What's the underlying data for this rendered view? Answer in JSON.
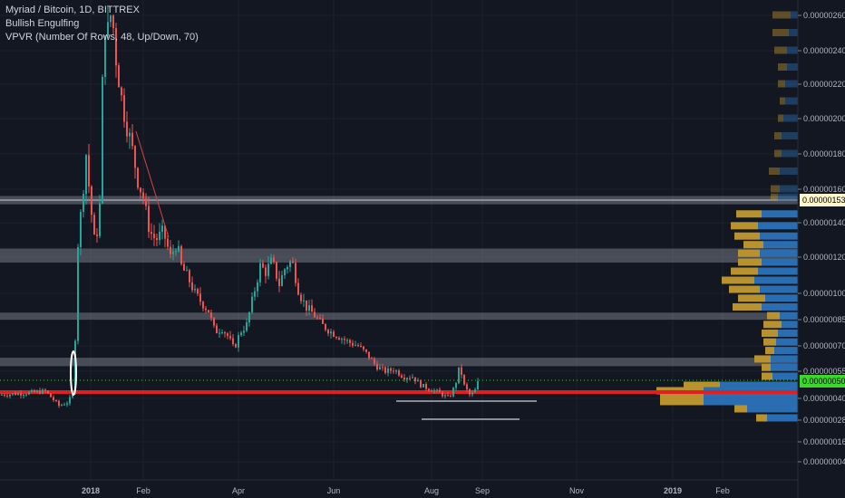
{
  "legend": {
    "title": "Myriad / Bitcoin, 1D, BITTREX",
    "indicator1": "Bullish Engulfing",
    "indicator2": "VPVR (Number Of Rows, 48, Up/Down, 70)"
  },
  "colors": {
    "background": "#131722",
    "up_candle": "#26a69a",
    "down_candle": "#ef5350",
    "vp_up": "#2a6db0",
    "vp_down": "#b8922e",
    "support_line": "#e02020",
    "zone": "#8a8e99",
    "current_price_bg": "#3dd62a",
    "high_price_bg": "#fff6cc"
  },
  "price_tags": {
    "current": "0.00000050",
    "high_zone": "0.00000153"
  },
  "chart_data": {
    "type": "candlestick",
    "title": "Myriad / Bitcoin, 1D, BITTREX",
    "x_tick_labels": [
      "2018",
      "Feb",
      "Apr",
      "Jun",
      "Aug",
      "Sep",
      "Nov",
      "2019",
      "Feb"
    ],
    "y_tick_labels": [
      "0.00000260",
      "0.00000240",
      "0.00000220",
      "0.00000200",
      "0.00000180",
      "0.00000160",
      "0.00000140",
      "0.00000120",
      "0.00000100",
      "0.00000085",
      "0.00000070",
      "0.00000055",
      "0.00000040",
      "0.00000028",
      "0.00000016",
      "0.00000004"
    ],
    "ylim": [
      4e-08,
      2.6e-06
    ],
    "close_path": [
      [
        0,
        4.2e-07
      ],
      [
        30,
        4.3e-07
      ],
      [
        50,
        4.4e-07
      ],
      [
        65,
        3.6e-07
      ],
      [
        75,
        3.8e-07
      ],
      [
        80,
        4.2e-07
      ],
      [
        83,
        7.5e-07
      ],
      [
        86,
        1.28e-06
      ],
      [
        90,
        1.5e-06
      ],
      [
        95,
        1.8e-06
      ],
      [
        100,
        1.5e-06
      ],
      [
        105,
        1.25e-06
      ],
      [
        110,
        1.5e-06
      ],
      [
        113,
        2.2e-06
      ],
      [
        116,
        2.55e-06
      ],
      [
        120,
        2.5e-06
      ],
      [
        123,
        2.65e-06
      ],
      [
        128,
        2.35e-06
      ],
      [
        133,
        2.15e-06
      ],
      [
        138,
        2e-06
      ],
      [
        145,
        1.85e-06
      ],
      [
        152,
        1.65e-06
      ],
      [
        158,
        1.55e-06
      ],
      [
        165,
        1.35e-06
      ],
      [
        172,
        1.3e-06
      ],
      [
        180,
        1.35e-06
      ],
      [
        188,
        1.2e-06
      ],
      [
        195,
        1.28e-06
      ],
      [
        200,
        1.15e-06
      ],
      [
        208,
        1.08e-06
      ],
      [
        215,
        1e-06
      ],
      [
        222,
        9.5e-07
      ],
      [
        230,
        9e-07
      ],
      [
        237,
        7.8e-07
      ],
      [
        245,
        8e-07
      ],
      [
        252,
        7.5e-07
      ],
      [
        258,
        6.8e-07
      ],
      [
        265,
        7.8e-07
      ],
      [
        272,
        8.2e-07
      ],
      [
        280,
        1e-06
      ],
      [
        287,
        1.15e-06
      ],
      [
        293,
        1.12e-06
      ],
      [
        300,
        1.18e-06
      ],
      [
        308,
        1.05e-06
      ],
      [
        315,
        1.15e-06
      ],
      [
        322,
        1.18e-06
      ],
      [
        330,
        1e-06
      ],
      [
        338,
        9.2e-07
      ],
      [
        346,
        8.8e-07
      ],
      [
        355,
        8.2e-07
      ],
      [
        365,
        7.8e-07
      ],
      [
        375,
        7.5e-07
      ],
      [
        385,
        7.2e-07
      ],
      [
        395,
        7e-07
      ],
      [
        405,
        6.5e-07
      ],
      [
        415,
        5.8e-07
      ],
      [
        425,
        5.5e-07
      ],
      [
        435,
        5.6e-07
      ],
      [
        445,
        5.2e-07
      ],
      [
        455,
        5.2e-07
      ],
      [
        465,
        4.7e-07
      ],
      [
        475,
        4.5e-07
      ],
      [
        485,
        4.3e-07
      ],
      [
        495,
        4e-07
      ],
      [
        502,
        4.7e-07
      ],
      [
        507,
        5.8e-07
      ],
      [
        512,
        4.7e-07
      ],
      [
        518,
        4.2e-07
      ],
      [
        523,
        4.3e-07
      ],
      [
        528,
        5e-07
      ]
    ],
    "zones": [
      {
        "from": 1.51e-06,
        "to": 1.56e-06
      },
      {
        "from": 1.17e-06,
        "to": 1.25e-06
      },
      {
        "from": 8.5e-07,
        "to": 8.9e-07
      },
      {
        "from": 5.8e-07,
        "to": 6.3e-07
      }
    ],
    "support_lines": [
      4.3e-07,
      4.4e-07
    ],
    "current_price": 5e-07,
    "volume_profile": {
      "price_levels": [
        2.6e-06,
        2.5e-06,
        2.4e-06,
        2.3e-06,
        2.2e-06,
        2.1e-06,
        2e-06,
        1.9e-06,
        1.8e-06,
        1.7e-06,
        1.6e-06,
        1.55e-06,
        1.45e-06,
        1.38e-06,
        1.32e-06,
        1.27e-06,
        1.22e-06,
        1.17e-06,
        1.12e-06,
        1.07e-06,
        1.02e-06,
        9.7e-07,
        9.2e-07,
        8.7e-07,
        8.2e-07,
        7.7e-07,
        7.2e-07,
        6.7e-07,
        6.2e-07,
        5.7e-07,
        5.2e-07,
        4.7e-07,
        4.4e-07,
        4.1e-07,
        3.8e-07,
        3.4e-07,
        2.9e-07
      ],
      "up": [
        8,
        10,
        12,
        12,
        14,
        14,
        16,
        18,
        18,
        20,
        20,
        22,
        40,
        44,
        42,
        38,
        42,
        40,
        44,
        48,
        42,
        36,
        40,
        20,
        18,
        22,
        24,
        26,
        30,
        30,
        28,
        86,
        104,
        104,
        104,
        56,
        34
      ],
      "down": [
        20,
        18,
        14,
        10,
        8,
        6,
        6,
        8,
        8,
        12,
        10,
        8,
        28,
        30,
        28,
        22,
        24,
        26,
        30,
        36,
        34,
        30,
        32,
        14,
        20,
        18,
        14,
        10,
        18,
        10,
        12,
        40,
        52,
        48,
        48,
        14,
        12
      ]
    }
  }
}
